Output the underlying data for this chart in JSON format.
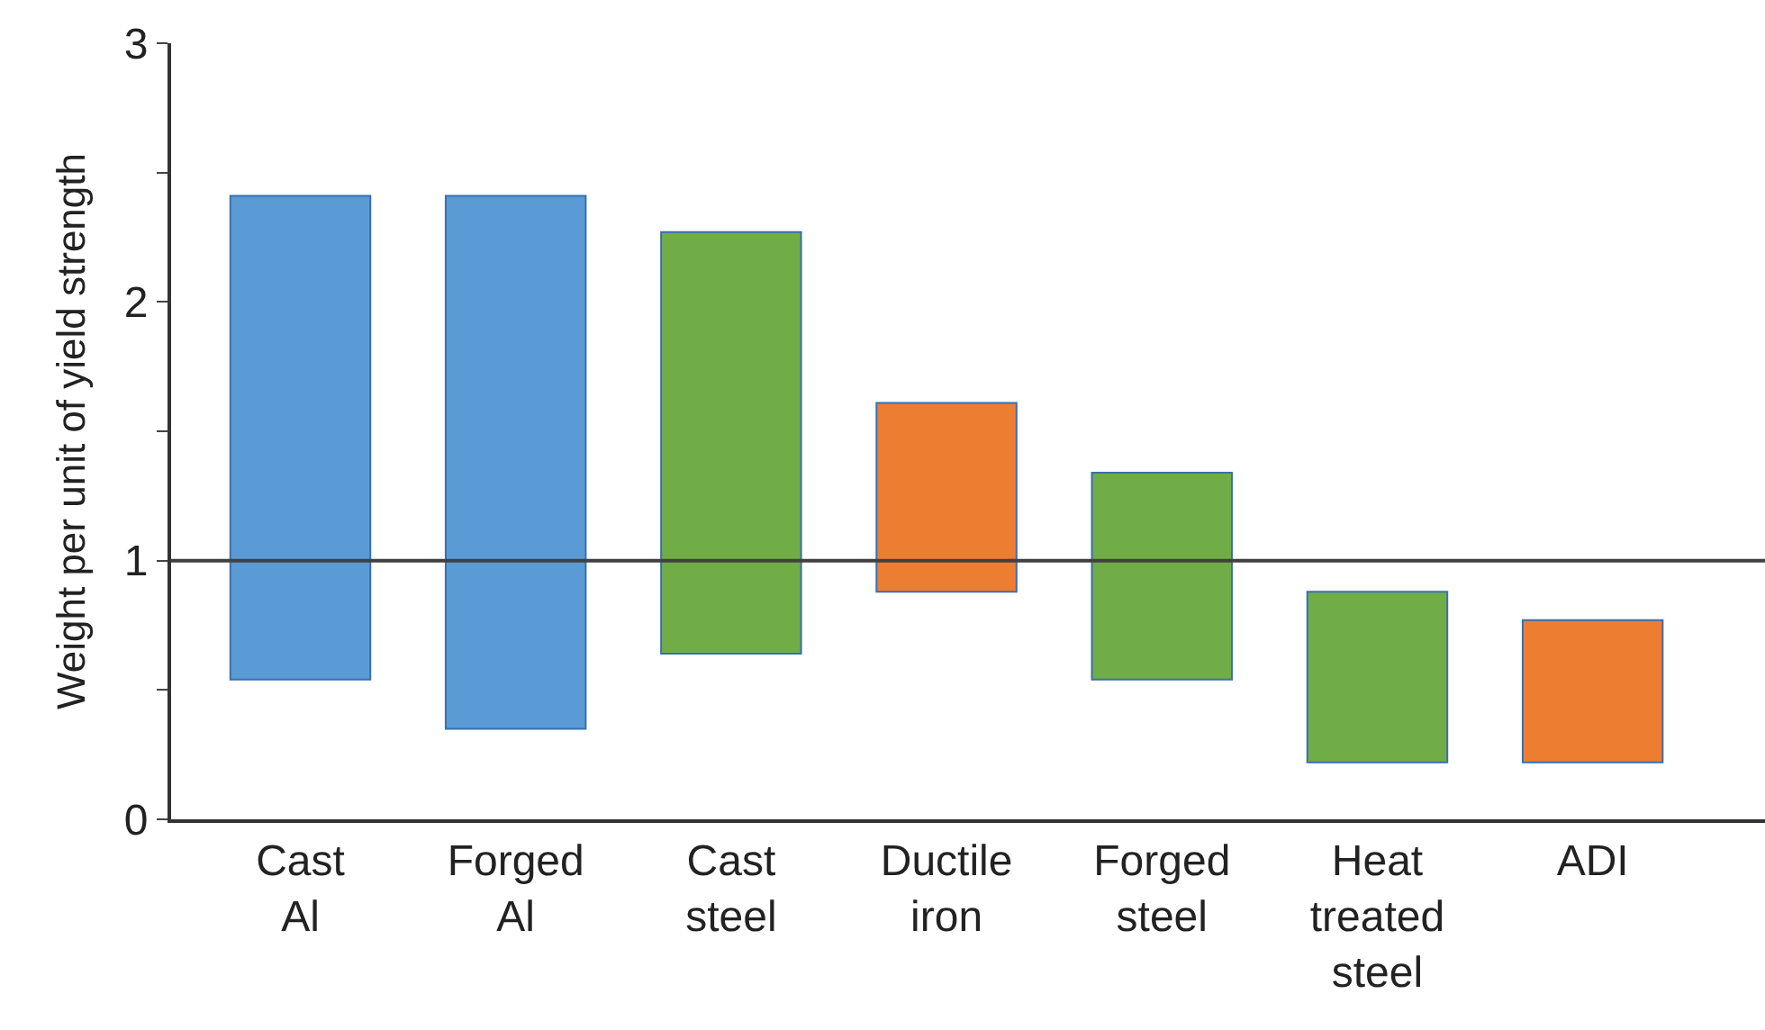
{
  "chart_data": {
    "type": "bar",
    "ylabel": "Weight per unit of yield strength",
    "categories": [
      "Cast\nAl",
      "Forged\nAl",
      "Cast\nsteel",
      "Ductile\niron",
      "Forged\nsteel",
      "Heat\ntreated\nsteel",
      "ADI"
    ],
    "base": [
      0.54,
      0.35,
      0.64,
      0.88,
      0.54,
      0.22,
      0.22
    ],
    "values": [
      1.87,
      2.06,
      1.63,
      0.73,
      0.8,
      0.66,
      0.55
    ],
    "colors": [
      "#5b9bd5",
      "#5b9bd5",
      "#70ad47",
      "#ed7d31",
      "#70ad47",
      "#70ad47",
      "#ed7d31"
    ],
    "ylim": [
      0,
      3
    ],
    "yticks": [
      0,
      {
        "value": 0.5,
        "label": null
      },
      1,
      {
        "value": 1.5,
        "label": null
      },
      2,
      {
        "value": 2.5,
        "label": null
      },
      3
    ],
    "ref_lines": [
      {
        "axis": "y",
        "value": 1,
        "label": null,
        "color": "#404040"
      }
    ]
  }
}
